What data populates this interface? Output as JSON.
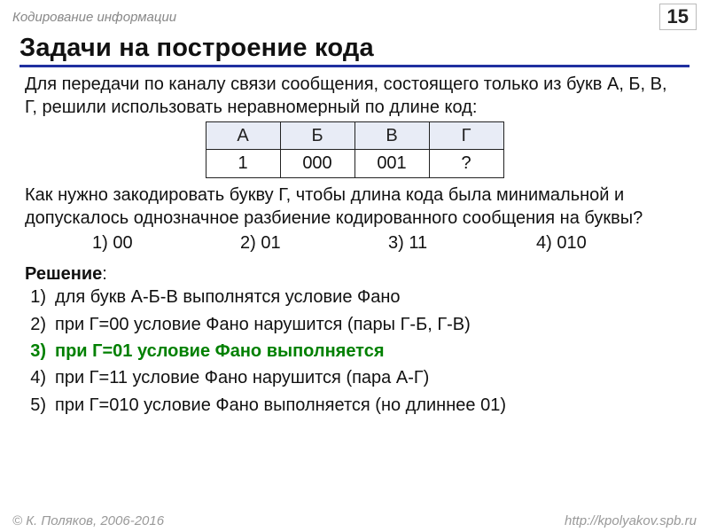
{
  "header": {
    "topic": "Кодирование информации",
    "page_number": "15"
  },
  "title": "Задачи на построение кода",
  "para1": "Для передачи по каналу связи сообщения, состоящего только из букв А, Б, В, Г, решили использовать неравномерный по длине код:",
  "code_table": {
    "headers": [
      "А",
      "Б",
      "В",
      "Г"
    ],
    "values": [
      "1",
      "000",
      "001",
      "?"
    ],
    "header_bg": "#e8ecf6",
    "border_color": "#222222"
  },
  "para2": "Как нужно закодировать букву Г, чтобы длина кода была минимальной и допускалось однозначное разбиение кодированного сообщения на буквы?",
  "options": [
    "1) 00",
    "2) 01",
    "3) 11",
    "4) 010"
  ],
  "solution_label": "Решение",
  "solution": [
    {
      "n": "1)",
      "text": "для букв А-Б-В выполнятся условие Фано",
      "hl": false
    },
    {
      "n": "2)",
      "text": "при Г=00 условие Фано нарушится (пары Г-Б,  Г-В)",
      "hl": false
    },
    {
      "n": "3)",
      "text": "при Г=01 условие Фано выполняется",
      "hl": true
    },
    {
      "n": "4)",
      "text": "при Г=11 условие Фано нарушится (пара А-Г)",
      "hl": false
    },
    {
      "n": "5)",
      "text": "при Г=010 условие Фано выполняется (но длиннее 01)",
      "hl": false
    }
  ],
  "footer": {
    "copyright": "© К. Поляков, 2006-2016",
    "url": "http://kpolyakov.spb.ru"
  },
  "colors": {
    "title_underline": "#2030a0",
    "highlight": "#008000",
    "muted": "#888888",
    "text": "#111111"
  }
}
